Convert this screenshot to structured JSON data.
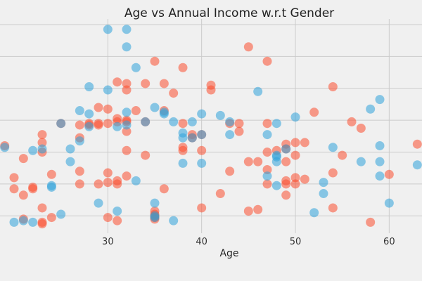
{
  "chart_data": {
    "type": "scatter",
    "title": "Age vs Annual Income w.r.t Gender",
    "xlabel": "Age",
    "ylabel": "",
    "xlim": [
      18.5,
      63.5
    ],
    "ylim": [
      10,
      140
    ],
    "xticks": [
      30,
      40,
      50,
      60
    ],
    "grid": true,
    "legend": "none",
    "series": [
      {
        "color": "#fc4f30",
        "points": [
          [
            19,
            64
          ],
          [
            20,
            44
          ],
          [
            20,
            37
          ],
          [
            21,
            56
          ],
          [
            21,
            18
          ],
          [
            21,
            33
          ],
          [
            22,
            38
          ],
          [
            22,
            37
          ],
          [
            23,
            66
          ],
          [
            23,
            71
          ],
          [
            23,
            60
          ],
          [
            23,
            25
          ],
          [
            23,
            16
          ],
          [
            23,
            15
          ],
          [
            24,
            46
          ],
          [
            24,
            19
          ],
          [
            25,
            78
          ],
          [
            27,
            77
          ],
          [
            27,
            69
          ],
          [
            27,
            48
          ],
          [
            27,
            40
          ],
          [
            28,
            78
          ],
          [
            28,
            77
          ],
          [
            29,
            88
          ],
          [
            29,
            77
          ],
          [
            29,
            40
          ],
          [
            29,
            78
          ],
          [
            30,
            41
          ],
          [
            30,
            47
          ],
          [
            30,
            78
          ],
          [
            30,
            87
          ],
          [
            30,
            19
          ],
          [
            31,
            104
          ],
          [
            31,
            79
          ],
          [
            31,
            81
          ],
          [
            31,
            40
          ],
          [
            31,
            42
          ],
          [
            31,
            17
          ],
          [
            32,
            99
          ],
          [
            32,
            80
          ],
          [
            32,
            103
          ],
          [
            32,
            45
          ],
          [
            32,
            61
          ],
          [
            32,
            73
          ],
          [
            32,
            79
          ],
          [
            33,
            86
          ],
          [
            34,
            79
          ],
          [
            34,
            103
          ],
          [
            34,
            58
          ],
          [
            35,
            117
          ],
          [
            35,
            23
          ],
          [
            35,
            20
          ],
          [
            35,
            19
          ],
          [
            35,
            18
          ],
          [
            35,
            21
          ],
          [
            36,
            103
          ],
          [
            36,
            86
          ],
          [
            36,
            37
          ],
          [
            37,
            97
          ],
          [
            38,
            113
          ],
          [
            38,
            78
          ],
          [
            38,
            63
          ],
          [
            38,
            61
          ],
          [
            39,
            71
          ],
          [
            39,
            69
          ],
          [
            40,
            71
          ],
          [
            40,
            61
          ],
          [
            40,
            25
          ],
          [
            41,
            102
          ],
          [
            41,
            99
          ],
          [
            42,
            34
          ],
          [
            43,
            78
          ],
          [
            43,
            48
          ],
          [
            44,
            73
          ],
          [
            44,
            78
          ],
          [
            45,
            126
          ],
          [
            45,
            23
          ],
          [
            45,
            54
          ],
          [
            46,
            54
          ],
          [
            46,
            24
          ],
          [
            47,
            117
          ],
          [
            47,
            40
          ],
          [
            47,
            60
          ],
          [
            47,
            78
          ],
          [
            47,
            49
          ],
          [
            48,
            61
          ],
          [
            49,
            65
          ],
          [
            49,
            62
          ],
          [
            49,
            42
          ],
          [
            49,
            54
          ],
          [
            49,
            33
          ],
          [
            49,
            40
          ],
          [
            50,
            66
          ],
          [
            50,
            58
          ],
          [
            50,
            44
          ],
          [
            50,
            40
          ],
          [
            51,
            66
          ],
          [
            51,
            43
          ],
          [
            52,
            85
          ],
          [
            54,
            101
          ],
          [
            54,
            47
          ],
          [
            54,
            25
          ],
          [
            55,
            58
          ],
          [
            56,
            79
          ],
          [
            57,
            75
          ],
          [
            58,
            16
          ],
          [
            60,
            46
          ],
          [
            63,
            65
          ]
        ]
      },
      {
        "color": "#30a2da",
        "points": [
          [
            18,
            59
          ],
          [
            19,
            63
          ],
          [
            20,
            16
          ],
          [
            21,
            17
          ],
          [
            22,
            61
          ],
          [
            22,
            16
          ],
          [
            23,
            62
          ],
          [
            24,
            39
          ],
          [
            24,
            38
          ],
          [
            25,
            78
          ],
          [
            25,
            21
          ],
          [
            26,
            62
          ],
          [
            26,
            54
          ],
          [
            27,
            86
          ],
          [
            27,
            67
          ],
          [
            28,
            101
          ],
          [
            28,
            84
          ],
          [
            28,
            76
          ],
          [
            29,
            28
          ],
          [
            30,
            99
          ],
          [
            30,
            137
          ],
          [
            31,
            76
          ],
          [
            31,
            23
          ],
          [
            32,
            137
          ],
          [
            32,
            126
          ],
          [
            32,
            85
          ],
          [
            32,
            77
          ],
          [
            33,
            113
          ],
          [
            33,
            42
          ],
          [
            34,
            79
          ],
          [
            35,
            88
          ],
          [
            35,
            28
          ],
          [
            35,
            20
          ],
          [
            35,
            19
          ],
          [
            36,
            85
          ],
          [
            36,
            84
          ],
          [
            37,
            79
          ],
          [
            37,
            17
          ],
          [
            38,
            53
          ],
          [
            38,
            69
          ],
          [
            38,
            72
          ],
          [
            39,
            79
          ],
          [
            39,
            69
          ],
          [
            40,
            71
          ],
          [
            40,
            53
          ],
          [
            40,
            84
          ],
          [
            42,
            83
          ],
          [
            43,
            79
          ],
          [
            43,
            71
          ],
          [
            46,
            98
          ],
          [
            47,
            71
          ],
          [
            47,
            45
          ],
          [
            48,
            78
          ],
          [
            48,
            58
          ],
          [
            48,
            54
          ],
          [
            48,
            39
          ],
          [
            48,
            57
          ],
          [
            49,
            62
          ],
          [
            50,
            82
          ],
          [
            52,
            22
          ],
          [
            53,
            34
          ],
          [
            53,
            41
          ],
          [
            54,
            63
          ],
          [
            57,
            54
          ],
          [
            58,
            87
          ],
          [
            59,
            93
          ],
          [
            59,
            64
          ],
          [
            59,
            54
          ],
          [
            59,
            45
          ],
          [
            60,
            28
          ],
          [
            63,
            52
          ]
        ]
      }
    ]
  }
}
